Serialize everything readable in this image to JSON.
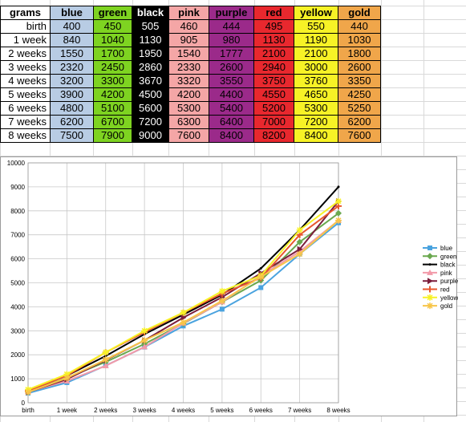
{
  "table": {
    "corner": "grams",
    "rows": [
      "birth",
      "1 week",
      "2 weeks",
      "3 weeks",
      "4 weeks",
      "5 weeks",
      "6 weeks",
      "7 weeks",
      "8 weeks"
    ]
  },
  "chart_data": {
    "type": "line",
    "categories": [
      "birth",
      "1 week",
      "2 weeks",
      "3 weeks",
      "4 weeks",
      "5 weeks",
      "6 weeks",
      "7 weeks",
      "8 weeks"
    ],
    "ylim": [
      0,
      10000
    ],
    "yticks": [
      "0",
      "1000",
      "2000",
      "3000",
      "4000",
      "5000",
      "6000",
      "7000",
      "8000",
      "9000",
      "10000"
    ],
    "grid": true,
    "legend": "right",
    "series": [
      {
        "name": "blue",
        "header_color": "#b8cce4",
        "line_color": "#4aa3df",
        "marker": "square",
        "values": [
          400,
          840,
          1550,
          2320,
          3200,
          3900,
          4800,
          6200,
          7500
        ]
      },
      {
        "name": "green",
        "header_color": "#7ed321",
        "line_color": "#6aa84f",
        "marker": "diamond",
        "values": [
          450,
          1040,
          1700,
          2450,
          3300,
          4200,
          5100,
          6700,
          7900
        ]
      },
      {
        "name": "black",
        "header_color": "#000000",
        "line_color": "#000000",
        "marker": "none",
        "values": [
          505,
          1130,
          1950,
          2860,
          3670,
          4500,
          5600,
          7200,
          9000
        ]
      },
      {
        "name": "pink",
        "header_color": "#f4a6a6",
        "line_color": "#f29aa9",
        "marker": "triangle",
        "values": [
          460,
          905,
          1540,
          2330,
          3320,
          4200,
          5300,
          6300,
          7600
        ]
      },
      {
        "name": "purple",
        "header_color": "#9b2a8a",
        "line_color": "#7b1d3b",
        "marker": "arrow",
        "values": [
          444,
          980,
          1777,
          2600,
          3550,
          4400,
          5400,
          6400,
          8400
        ]
      },
      {
        "name": "red",
        "header_color": "#e8282e",
        "line_color": "#e8572e",
        "marker": "plus",
        "values": [
          495,
          1130,
          2100,
          2940,
          3750,
          4550,
          5200,
          7000,
          8200
        ]
      },
      {
        "name": "yellow",
        "header_color": "#f7f226",
        "line_color": "#f7f226",
        "marker": "star",
        "values": [
          550,
          1190,
          2100,
          3000,
          3760,
          4650,
          5300,
          7200,
          8400
        ]
      },
      {
        "name": "gold",
        "header_color": "#f0a64a",
        "line_color": "#f7c548",
        "marker": "star",
        "values": [
          440,
          1030,
          1800,
          2600,
          3350,
          4250,
          5250,
          6200,
          7600
        ]
      }
    ]
  }
}
